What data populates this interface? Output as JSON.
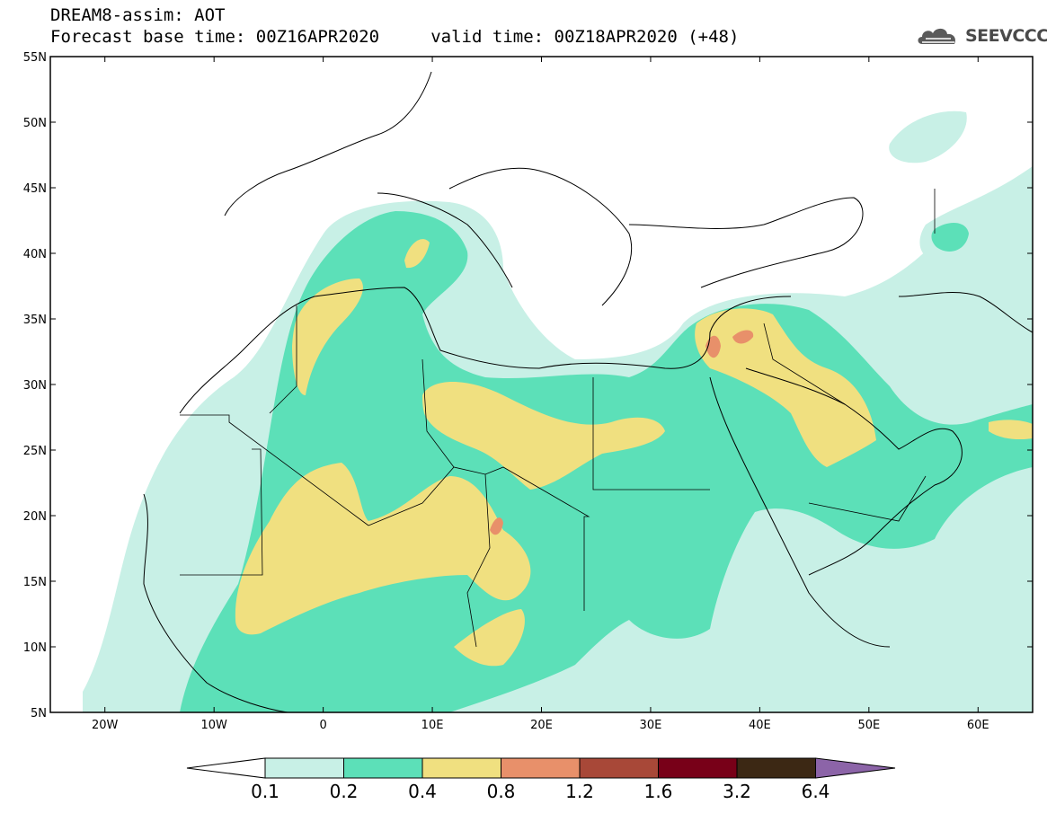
{
  "title": {
    "line1": "DREAM8-assim: AOT",
    "line2": "Forecast base time: 00Z16APR2020     valid time: 00Z18APR2020 (+48)"
  },
  "logo": {
    "text": "SEEVCCC",
    "icon": "cloud-icon"
  },
  "map": {
    "lon_range": [
      -25,
      65
    ],
    "lat_range": [
      5,
      55
    ],
    "lon_ticks": [
      {
        "value": -20,
        "label": "20W"
      },
      {
        "value": -10,
        "label": "10W"
      },
      {
        "value": 0,
        "label": "0"
      },
      {
        "value": 10,
        "label": "10E"
      },
      {
        "value": 20,
        "label": "20E"
      },
      {
        "value": 30,
        "label": "30E"
      },
      {
        "value": 40,
        "label": "40E"
      },
      {
        "value": 50,
        "label": "50E"
      },
      {
        "value": 60,
        "label": "60E"
      }
    ],
    "lat_ticks": [
      {
        "value": 55,
        "label": "55N"
      },
      {
        "value": 50,
        "label": "50N"
      },
      {
        "value": 45,
        "label": "45N"
      },
      {
        "value": 40,
        "label": "40N"
      },
      {
        "value": 35,
        "label": "35N"
      },
      {
        "value": 30,
        "label": "30N"
      },
      {
        "value": 25,
        "label": "25N"
      },
      {
        "value": 20,
        "label": "20N"
      },
      {
        "value": 15,
        "label": "15N"
      },
      {
        "value": 10,
        "label": "10N"
      },
      {
        "value": 5,
        "label": "5N"
      }
    ]
  },
  "legend": {
    "colors": [
      "#c8f0e6",
      "#5ce0b8",
      "#f0e080",
      "#e8906a",
      "#a84838",
      "#780018",
      "#3c2814",
      "#8c64a8"
    ],
    "bounds": [
      "0.1",
      "0.2",
      "0.4",
      "0.8",
      "1.2",
      "1.6",
      "3.2",
      "6.4"
    ]
  }
}
